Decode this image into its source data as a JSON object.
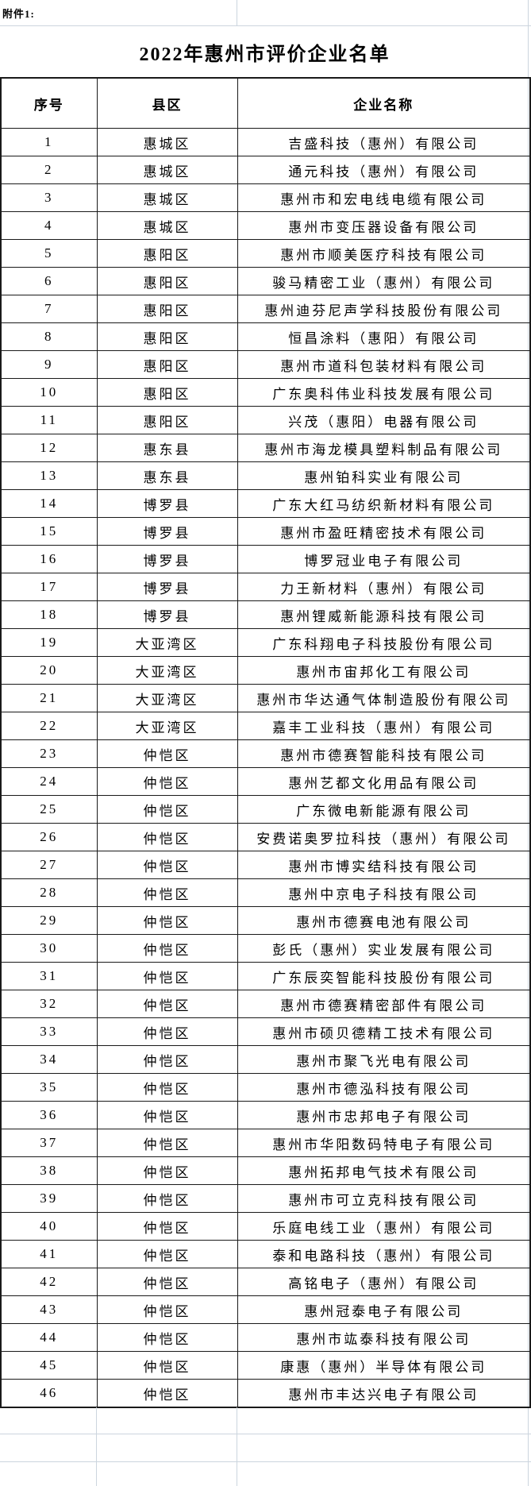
{
  "page": {
    "attachment_label": "附件1:",
    "title": "2022年惠州市评价企业名单"
  },
  "colors": {
    "table_border": "#1a1a1a",
    "spreadsheet_gridline": "#ccd5de",
    "text": "#000000",
    "background": "#ffffff"
  },
  "table": {
    "headers": [
      "序号",
      "县区",
      "企业名称"
    ],
    "rows": [
      {
        "no": "1",
        "district": "惠城区",
        "company": "吉盛科技（惠州）有限公司"
      },
      {
        "no": "2",
        "district": "惠城区",
        "company": "通元科技（惠州）有限公司"
      },
      {
        "no": "3",
        "district": "惠城区",
        "company": "惠州市和宏电线电缆有限公司"
      },
      {
        "no": "4",
        "district": "惠城区",
        "company": "惠州市变压器设备有限公司"
      },
      {
        "no": "5",
        "district": "惠阳区",
        "company": "惠州市顺美医疗科技有限公司"
      },
      {
        "no": "6",
        "district": "惠阳区",
        "company": "骏马精密工业（惠州）有限公司"
      },
      {
        "no": "7",
        "district": "惠阳区",
        "company": "惠州迪芬尼声学科技股份有限公司"
      },
      {
        "no": "8",
        "district": "惠阳区",
        "company": "恒昌涂料（惠阳）有限公司"
      },
      {
        "no": "9",
        "district": "惠阳区",
        "company": "惠州市道科包装材料有限公司"
      },
      {
        "no": "10",
        "district": "惠阳区",
        "company": "广东奥科伟业科技发展有限公司"
      },
      {
        "no": "11",
        "district": "惠阳区",
        "company": "兴茂（惠阳）电器有限公司"
      },
      {
        "no": "12",
        "district": "惠东县",
        "company": "惠州市海龙模具塑料制品有限公司"
      },
      {
        "no": "13",
        "district": "惠东县",
        "company": "惠州铂科实业有限公司"
      },
      {
        "no": "14",
        "district": "博罗县",
        "company": "广东大红马纺织新材料有限公司"
      },
      {
        "no": "15",
        "district": "博罗县",
        "company": "惠州市盈旺精密技术有限公司"
      },
      {
        "no": "16",
        "district": "博罗县",
        "company": "博罗冠业电子有限公司"
      },
      {
        "no": "17",
        "district": "博罗县",
        "company": "力王新材料（惠州）有限公司"
      },
      {
        "no": "18",
        "district": "博罗县",
        "company": "惠州锂威新能源科技有限公司"
      },
      {
        "no": "19",
        "district": "大亚湾区",
        "company": "广东科翔电子科技股份有限公司"
      },
      {
        "no": "20",
        "district": "大亚湾区",
        "company": "惠州市宙邦化工有限公司"
      },
      {
        "no": "21",
        "district": "大亚湾区",
        "company": "惠州市华达通气体制造股份有限公司"
      },
      {
        "no": "22",
        "district": "大亚湾区",
        "company": "嘉丰工业科技（惠州）有限公司"
      },
      {
        "no": "23",
        "district": "仲恺区",
        "company": "惠州市德赛智能科技有限公司"
      },
      {
        "no": "24",
        "district": "仲恺区",
        "company": "惠州艺都文化用品有限公司"
      },
      {
        "no": "25",
        "district": "仲恺区",
        "company": "广东微电新能源有限公司"
      },
      {
        "no": "26",
        "district": "仲恺区",
        "company": "安费诺奥罗拉科技（惠州）有限公司"
      },
      {
        "no": "27",
        "district": "仲恺区",
        "company": "惠州市博实结科技有限公司"
      },
      {
        "no": "28",
        "district": "仲恺区",
        "company": "惠州中京电子科技有限公司"
      },
      {
        "no": "29",
        "district": "仲恺区",
        "company": "惠州市德赛电池有限公司"
      },
      {
        "no": "30",
        "district": "仲恺区",
        "company": "彭氏（惠州）实业发展有限公司"
      },
      {
        "no": "31",
        "district": "仲恺区",
        "company": "广东辰奕智能科技股份有限公司"
      },
      {
        "no": "32",
        "district": "仲恺区",
        "company": "惠州市德赛精密部件有限公司"
      },
      {
        "no": "33",
        "district": "仲恺区",
        "company": "惠州市硕贝德精工技术有限公司"
      },
      {
        "no": "34",
        "district": "仲恺区",
        "company": "惠州市聚飞光电有限公司"
      },
      {
        "no": "35",
        "district": "仲恺区",
        "company": "惠州市德泓科技有限公司"
      },
      {
        "no": "36",
        "district": "仲恺区",
        "company": "惠州市忠邦电子有限公司"
      },
      {
        "no": "37",
        "district": "仲恺区",
        "company": "惠州市华阳数码特电子有限公司"
      },
      {
        "no": "38",
        "district": "仲恺区",
        "company": "惠州拓邦电气技术有限公司"
      },
      {
        "no": "39",
        "district": "仲恺区",
        "company": "惠州市可立克科技有限公司"
      },
      {
        "no": "40",
        "district": "仲恺区",
        "company": "乐庭电线工业（惠州）有限公司"
      },
      {
        "no": "41",
        "district": "仲恺区",
        "company": "泰和电路科技（惠州）有限公司"
      },
      {
        "no": "42",
        "district": "仲恺区",
        "company": "高铭电子（惠州）有限公司"
      },
      {
        "no": "43",
        "district": "仲恺区",
        "company": "惠州冠泰电子有限公司"
      },
      {
        "no": "44",
        "district": "仲恺区",
        "company": "惠州市竑泰科技有限公司"
      },
      {
        "no": "45",
        "district": "仲恺区",
        "company": "康惠（惠州）半导体有限公司"
      },
      {
        "no": "46",
        "district": "仲恺区",
        "company": "惠州市丰达兴电子有限公司"
      }
    ]
  }
}
